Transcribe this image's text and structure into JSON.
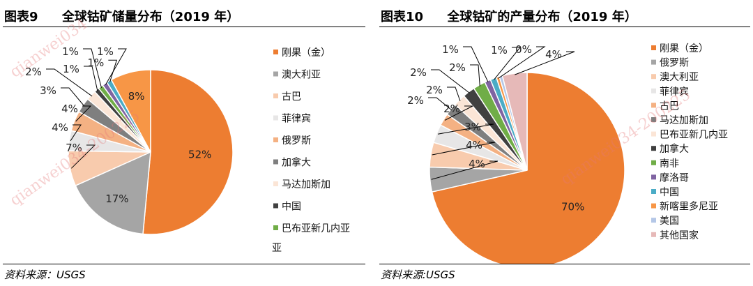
{
  "source_label": "资料来源：USGS",
  "source_label_right": "资料来源:USGS",
  "watermark": "qianwei034-200225",
  "watermark_partial": "qianwei034",
  "chart_data": [
    {
      "type": "pie",
      "figure_no": "图表9",
      "title": "全球钴矿储量分布（2019 年）",
      "start_angle_deg": 0,
      "slices": [
        {
          "name": "刚果（金）",
          "value": 52,
          "label": "52%",
          "color": "#ED7D31"
        },
        {
          "name": "澳大利亚",
          "value": 17,
          "label": "17%",
          "color": "#A5A5A5"
        },
        {
          "name": "古巴",
          "value": 7,
          "label": "7%",
          "color": "#F8CBAD"
        },
        {
          "name": "菲律宾",
          "value": 4,
          "label": "4%",
          "color": "#E7E6E6"
        },
        {
          "name": "俄罗斯",
          "value": 4,
          "label": "4%",
          "color": "#F4B183"
        },
        {
          "name": "加拿大",
          "value": 3,
          "label": "3%",
          "color": "#7F7F7F"
        },
        {
          "name": "马达加斯加",
          "value": 2,
          "label": "2%",
          "color": "#FBE5D6"
        },
        {
          "name": "中国",
          "value": 1,
          "label": "1%",
          "color": "#404040"
        },
        {
          "name": "巴布亚新几内亚",
          "value": 1,
          "label": "1%",
          "color": "#70AD47"
        },
        {
          "name": "",
          "value": 1,
          "label": "1%",
          "color": "#8064A2"
        },
        {
          "name": "",
          "value": 1,
          "label": "1%",
          "color": "#4BACC6"
        },
        {
          "name": "",
          "value": 8,
          "label": "8%",
          "color": "#F79646"
        }
      ],
      "legend_extra_line": "亚"
    },
    {
      "type": "pie",
      "figure_no": "图表10",
      "title": "全球钴矿的产量分布（2019 年）",
      "start_angle_deg": 0,
      "slices": [
        {
          "name": "刚果（金）",
          "value": 70,
          "label": "70%",
          "color": "#ED7D31"
        },
        {
          "name": "俄罗斯",
          "value": 4,
          "label": "4%",
          "color": "#A5A5A5"
        },
        {
          "name": "澳大利亚",
          "value": 4,
          "label": "4%",
          "color": "#F8CBAD"
        },
        {
          "name": "菲律宾",
          "value": 3,
          "label": "3%",
          "color": "#E7E6E6"
        },
        {
          "name": "古巴",
          "value": 2,
          "label": "2%",
          "color": "#F4B183"
        },
        {
          "name": "马达加斯加",
          "value": 2,
          "label": "2%",
          "color": "#7F7F7F"
        },
        {
          "name": "巴布亚新几内亚",
          "value": 2,
          "label": "2%",
          "color": "#FBE5D6"
        },
        {
          "name": "加拿大",
          "value": 2,
          "label": "2%",
          "color": "#404040"
        },
        {
          "name": "南非",
          "value": 2,
          "label": "2%",
          "color": "#70AD47"
        },
        {
          "name": "摩洛哥",
          "value": 1,
          "label": "1%",
          "color": "#8064A2"
        },
        {
          "name": "中国",
          "value": 1,
          "label": "1%",
          "color": "#4BACC6"
        },
        {
          "name": "新喀里多尼亚",
          "value": 0.5,
          "label": "0%",
          "color": "#F79646"
        },
        {
          "name": "美国",
          "value": 0.5,
          "label": "",
          "color": "#B4C7E7"
        },
        {
          "name": "其他国家",
          "value": 4,
          "label": "4%",
          "color": "#E6B9B8"
        }
      ]
    }
  ]
}
